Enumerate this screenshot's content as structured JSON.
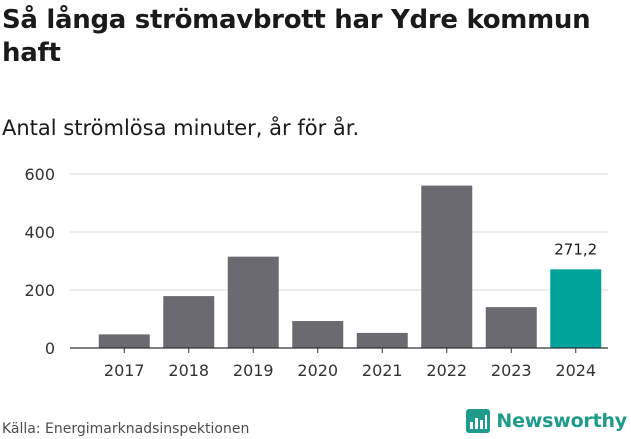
{
  "title": "Så långa strömavbrott har Ydre kommun haft",
  "subtitle": "Antal strömlösa minuter, år för år.",
  "source": "Källa: Energimarknadsinspektionen",
  "brand": {
    "name": "Newsworthy",
    "color": "#1e9b8a"
  },
  "chart_data": {
    "type": "bar",
    "categories": [
      "2017",
      "2018",
      "2019",
      "2020",
      "2021",
      "2022",
      "2023",
      "2024"
    ],
    "values": [
      47,
      179,
      315,
      93,
      52,
      560,
      141,
      271.2
    ],
    "highlight": {
      "index": 7,
      "label": "271,2"
    },
    "colors": {
      "default": "#6b6a70",
      "highlight": "#00a39a"
    },
    "ylim": [
      0,
      600
    ],
    "yticks": [
      0,
      200,
      400,
      600
    ],
    "grid": true,
    "legend": "none"
  }
}
